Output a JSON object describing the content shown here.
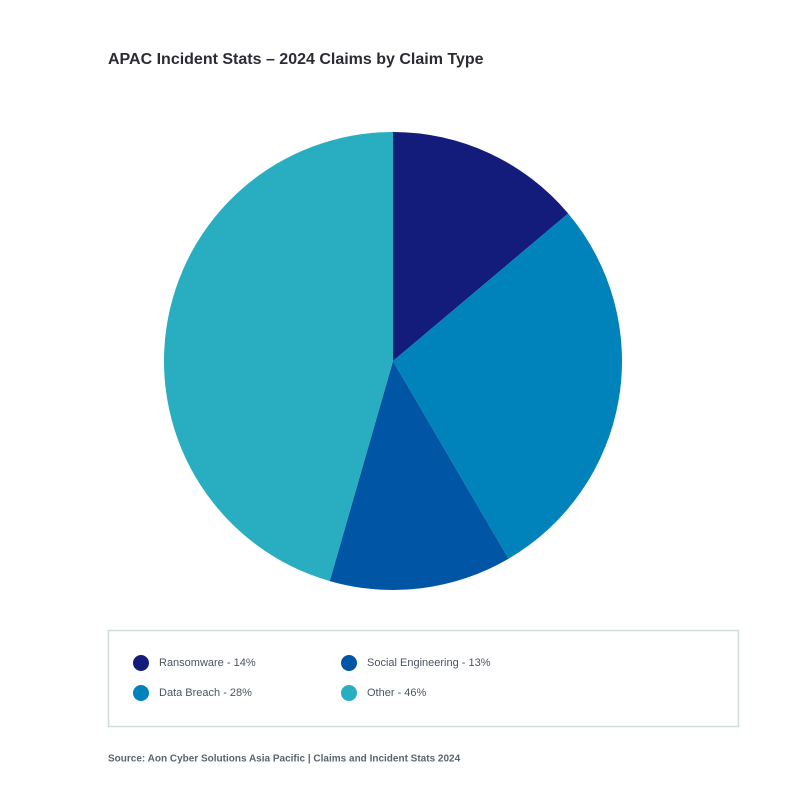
{
  "chart_data": {
    "type": "pie",
    "title": "APAC Incident Stats – 2024 Claims by Claim Type",
    "categories": [
      "Ransomware - 14%",
      "Data Breach - 28%",
      "Social Engineering - 13%",
      "Other - 46%"
    ],
    "values": [
      14,
      28,
      13,
      46
    ],
    "colors": [
      "#131c7a",
      "#0083bb",
      "#0055a5",
      "#29adc1"
    ],
    "source": "Source: Aon Cyber Solutions Asia Pacific | Claims and Incident Stats 2024"
  }
}
